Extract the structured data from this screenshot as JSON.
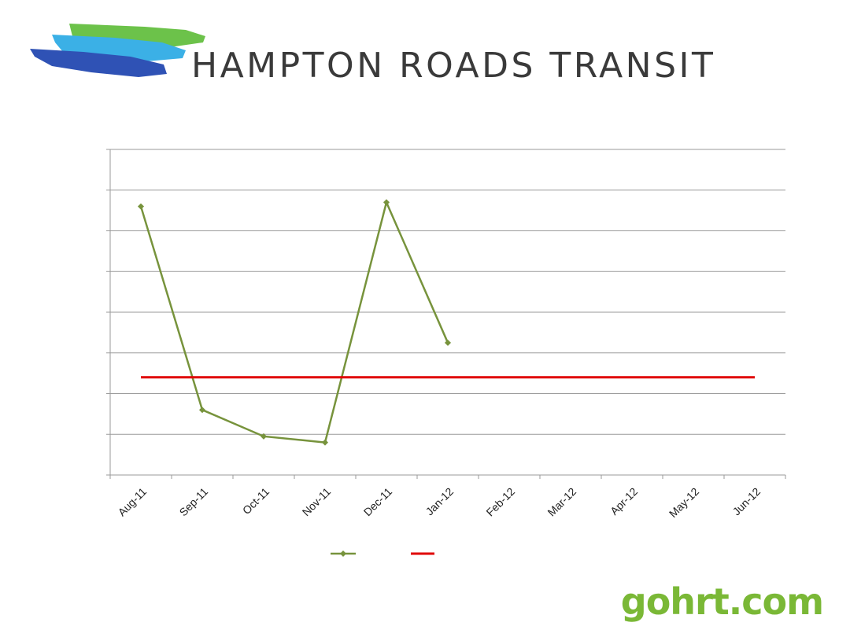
{
  "header": {
    "logo_text": "HAMPTON ROADS TRANSIT"
  },
  "footer": {
    "url": "gohrt.com"
  },
  "colors": {
    "series": "#77933c",
    "target": "#e00000",
    "grid": "#9a9a9a",
    "logo_green": "#6cc24a",
    "logo_cyan": "#3bb0e6",
    "logo_blue": "#2f52b5"
  },
  "chart_data": {
    "type": "line",
    "categories": [
      "Aug-11",
      "Sep-11",
      "Oct-11",
      "Nov-11",
      "Dec-11",
      "Jan-12",
      "Feb-12",
      "Mar-12",
      "Apr-12",
      "May-12",
      "Jun-12"
    ],
    "series": [
      {
        "values": [
          6.6,
          1.6,
          0.95,
          0.8,
          6.7,
          3.25,
          null,
          null,
          null,
          null,
          null
        ],
        "marker": "diamond"
      },
      {
        "values": [
          2.4,
          2.4,
          2.4,
          2.4,
          2.4,
          2.4,
          2.4,
          2.4,
          2.4,
          2.4,
          2.4
        ],
        "marker": "none"
      }
    ],
    "ylim": [
      0,
      8
    ],
    "gridlines": true,
    "legend_position": "bottom",
    "title": "",
    "xlabel": "",
    "ylabel": ""
  }
}
